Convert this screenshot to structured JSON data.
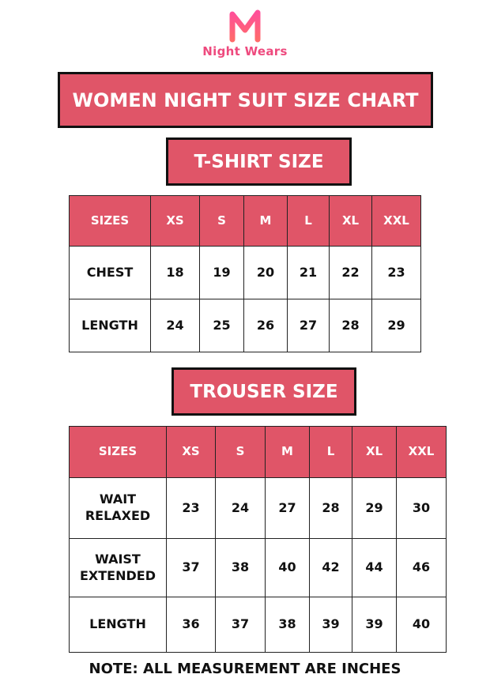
{
  "brand": {
    "name": "Night Wears",
    "color": "#ee4a7e"
  },
  "title": "WOMEN NIGHT SUIT SIZE CHART",
  "accent_color": "#e05568",
  "tshirt": {
    "heading": "T-SHIRT SIZE",
    "columns": [
      "SIZES",
      "XS",
      "S",
      "M",
      "L",
      "XL",
      "XXL"
    ],
    "rows": [
      {
        "label": "CHEST",
        "values": [
          "18",
          "19",
          "20",
          "21",
          "22",
          "23"
        ]
      },
      {
        "label": "LENGTH",
        "values": [
          "24",
          "25",
          "26",
          "27",
          "28",
          "29"
        ]
      }
    ]
  },
  "trouser": {
    "heading": "TROUSER SIZE",
    "columns": [
      "SIZES",
      "XS",
      "S",
      "M",
      "L",
      "XL",
      "XXL"
    ],
    "rows": [
      {
        "label": "WAIT RELAXED",
        "values": [
          "23",
          "24",
          "27",
          "28",
          "29",
          "30"
        ]
      },
      {
        "label": "WAIST EXTENDED",
        "values": [
          "37",
          "38",
          "40",
          "42",
          "44",
          "46"
        ]
      },
      {
        "label": "LENGTH",
        "values": [
          "36",
          "37",
          "38",
          "39",
          "39",
          "40"
        ]
      }
    ]
  },
  "note": "NOTE: ALL MEASUREMENT ARE INCHES"
}
